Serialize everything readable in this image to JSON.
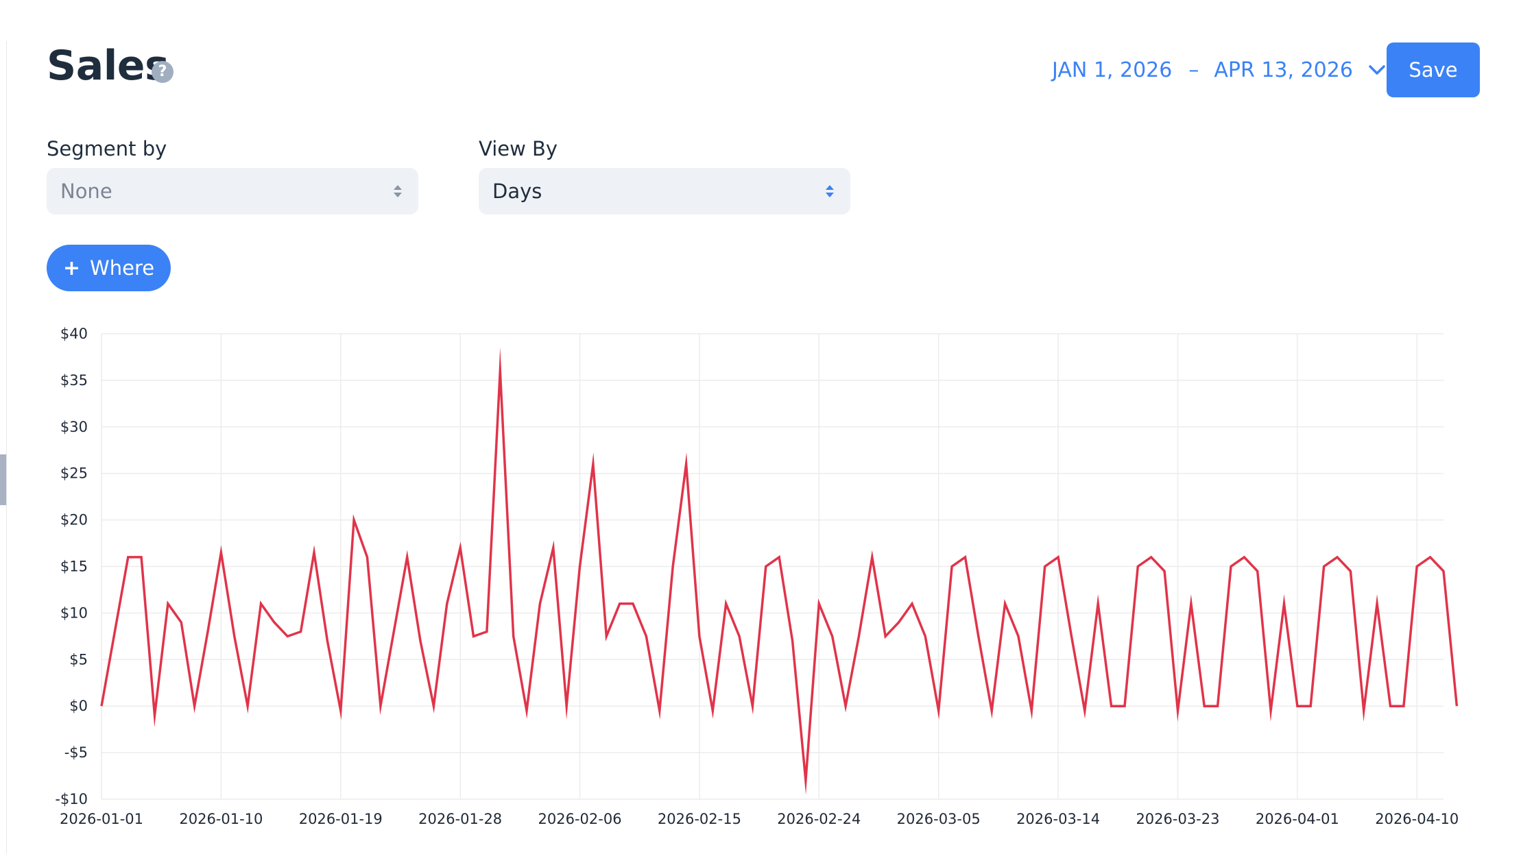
{
  "header": {
    "title": "Sales",
    "help_icon": "?",
    "date_start": "JAN 1, 2026",
    "date_separator": "–",
    "date_end": "APR 13, 2026",
    "save_label": "Save"
  },
  "controls": {
    "segment_label": "Segment by",
    "segment_value": "None",
    "view_label": "View By",
    "view_value": "Days",
    "where_label": "Where",
    "where_plus": "+"
  },
  "colors": {
    "accent": "#3b82f6",
    "line": "#e0344a",
    "grid": "#ececec"
  },
  "chart_data": {
    "type": "line",
    "title": "",
    "xlabel": "",
    "ylabel": "",
    "grid": true,
    "x_start": "2026-01-01",
    "x_end": "2026-04-12",
    "x_ticks": [
      "2026-01-01",
      "2026-01-10",
      "2026-01-19",
      "2026-01-28",
      "2026-02-06",
      "2026-02-15",
      "2026-02-24",
      "2026-03-05",
      "2026-03-14",
      "2026-03-23",
      "2026-04-01",
      "2026-04-10"
    ],
    "y_ticks": [
      40,
      35,
      30,
      25,
      20,
      15,
      10,
      5,
      0,
      -5,
      -10
    ],
    "y_tick_labels": [
      "$40",
      "$35",
      "$30",
      "$25",
      "$20",
      "$15",
      "$10",
      "$5",
      "$0",
      "-$5",
      "-$10"
    ],
    "ylim": [
      -10,
      40
    ],
    "series": [
      {
        "values": [
          0,
          8,
          16,
          16,
          -1,
          11,
          9,
          0,
          8,
          16.5,
          7.5,
          0,
          11,
          9,
          7.5,
          8,
          16.5,
          7,
          -0.5,
          20,
          16,
          0,
          8,
          16,
          7,
          0,
          11,
          17,
          7.5,
          8,
          36,
          7.5,
          -0.5,
          11,
          17,
          0,
          15,
          26,
          7.5,
          11,
          11,
          7.5,
          -0.5,
          15,
          26,
          7.5,
          -0.5,
          11,
          7.5,
          0,
          15,
          16,
          7,
          -8,
          11,
          7.5,
          0,
          7.5,
          16,
          7.5,
          9,
          11,
          7.5,
          -0.5,
          15,
          16,
          7.5,
          -0.5,
          11,
          7.5,
          -0.5,
          15,
          16,
          7.5,
          -0.5,
          11,
          0,
          0,
          15,
          16,
          14.5,
          -0.5,
          11,
          0,
          0,
          15,
          16,
          14.5,
          -0.5,
          11,
          0,
          0,
          15,
          16,
          14.5,
          -0.5,
          11,
          0,
          0,
          15,
          16,
          14.5,
          0
        ]
      }
    ]
  }
}
